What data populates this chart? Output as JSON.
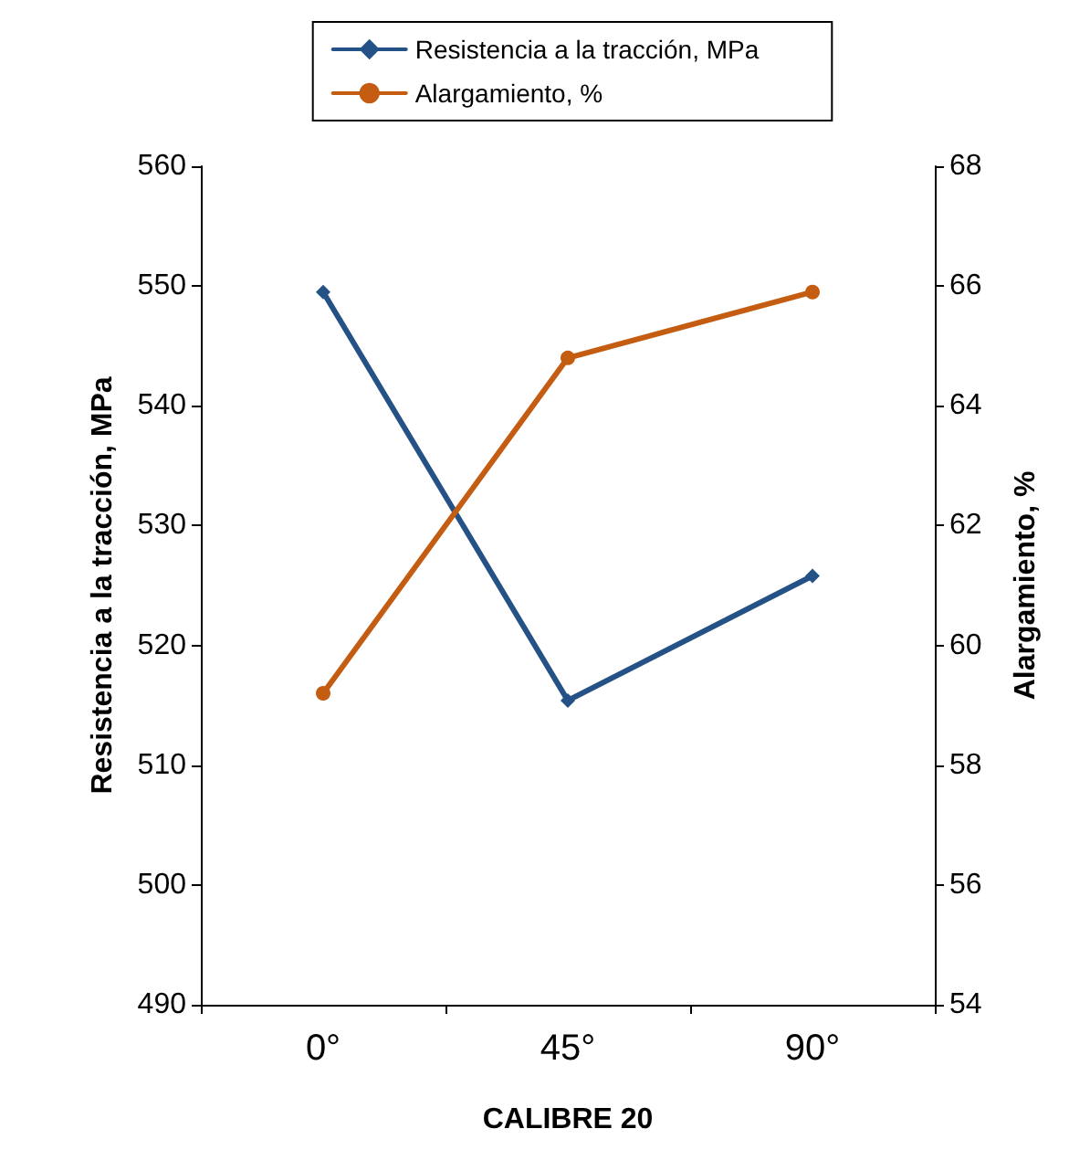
{
  "chart_data": {
    "type": "line",
    "xlabel": "CALIBRE 20",
    "ylabel": "Resistencia a la tracción, MPa",
    "y2label": "Alargamiento, %",
    "categories": [
      "0°",
      "45°",
      "90°"
    ],
    "series": [
      {
        "name": "Resistencia a la tracción, MPa",
        "color": "#255286",
        "values": [
          549.5,
          515.4,
          525.8
        ],
        "marker": "diamond"
      },
      {
        "name": "Alargamiento, %",
        "color": "#c45c12",
        "values": [
          59.2,
          64.8,
          65.9
        ],
        "axis": "y2",
        "marker": "circle"
      }
    ],
    "ylim": [
      490,
      560
    ],
    "yticks": [
      490,
      500,
      510,
      520,
      530,
      540,
      550,
      560
    ],
    "y2lim": [
      54,
      68
    ],
    "y2ticks": [
      54,
      56,
      58,
      60,
      62,
      64,
      66,
      68
    ],
    "grid": false,
    "legend": "top",
    "line_style": "solid"
  }
}
